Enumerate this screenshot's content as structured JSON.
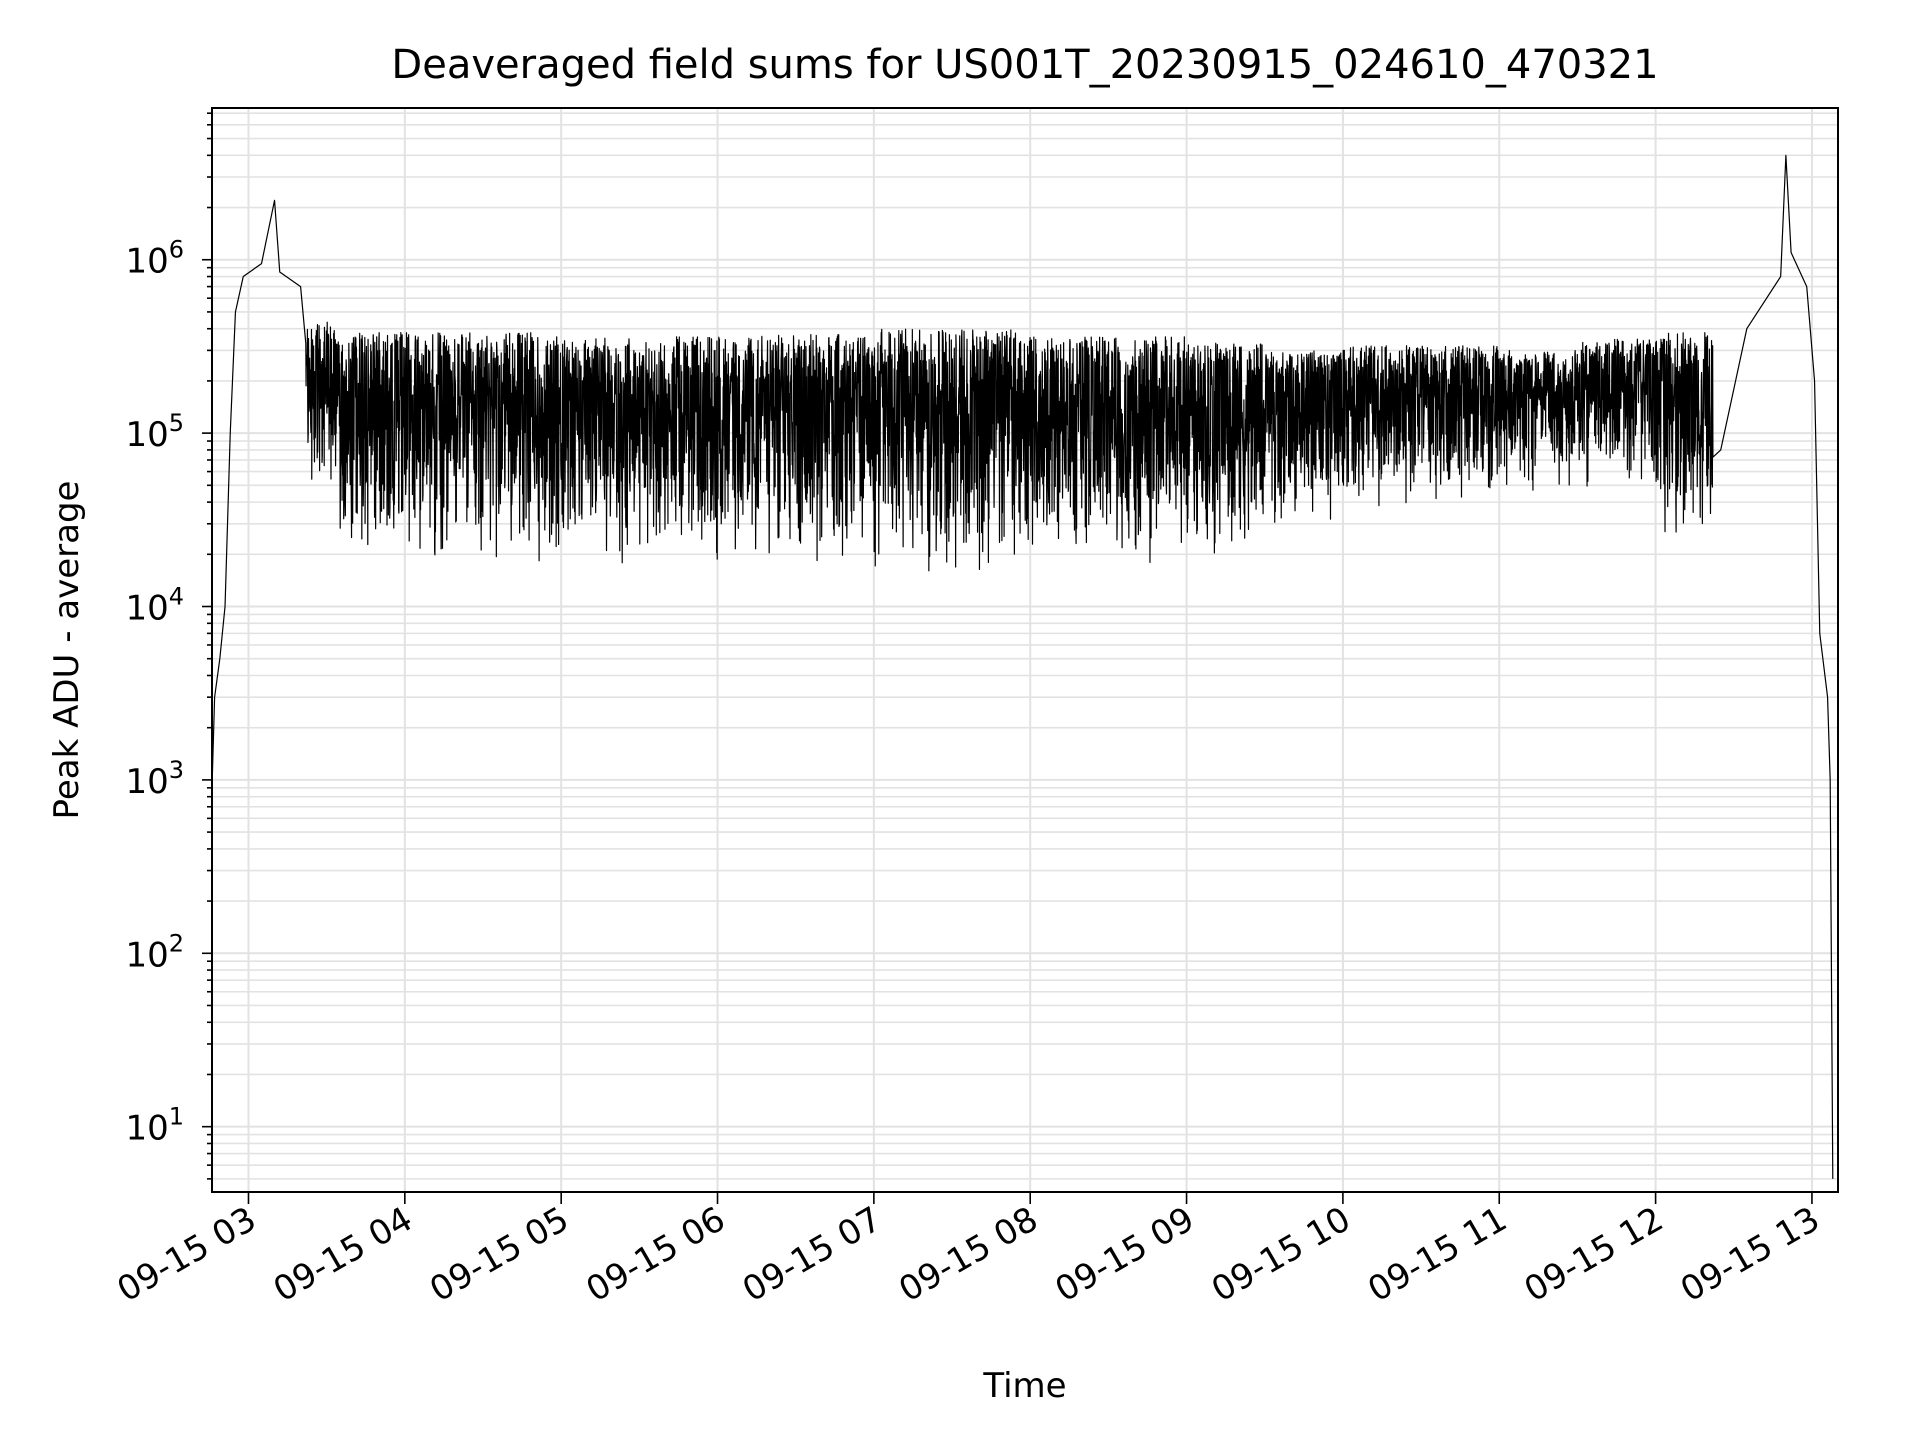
{
  "chart_data": {
    "type": "line",
    "title": "Deaveraged field sums for US001T_20230915_024610_470321",
    "xlabel": "Time",
    "ylabel": "Peak ADU - average",
    "yscale": "log",
    "grid": "major and minor",
    "xlim": [
      "2023-09-15 02:46",
      "2023-09-15 13:10"
    ],
    "ylim": [
      4.2,
      7500000
    ],
    "x_ticks": [
      {
        "value": "2023-09-15 03:00",
        "label": "09-15 03"
      },
      {
        "value": "2023-09-15 04:00",
        "label": "09-15 04"
      },
      {
        "value": "2023-09-15 05:00",
        "label": "09-15 05"
      },
      {
        "value": "2023-09-15 06:00",
        "label": "09-15 06"
      },
      {
        "value": "2023-09-15 07:00",
        "label": "09-15 07"
      },
      {
        "value": "2023-09-15 08:00",
        "label": "09-15 08"
      },
      {
        "value": "2023-09-15 09:00",
        "label": "09-15 09"
      },
      {
        "value": "2023-09-15 10:00",
        "label": "09-15 10"
      },
      {
        "value": "2023-09-15 11:00",
        "label": "09-15 11"
      },
      {
        "value": "2023-09-15 12:00",
        "label": "09-15 12"
      },
      {
        "value": "2023-09-15 13:00",
        "label": "09-15 13"
      }
    ],
    "y_ticks": [
      {
        "value": 10,
        "base": "10",
        "exp": "1"
      },
      {
        "value": 100,
        "base": "10",
        "exp": "2"
      },
      {
        "value": 1000,
        "base": "10",
        "exp": "3"
      },
      {
        "value": 10000,
        "base": "10",
        "exp": "4"
      },
      {
        "value": 100000,
        "base": "10",
        "exp": "5"
      },
      {
        "value": 1000000,
        "base": "10",
        "exp": "6"
      }
    ],
    "series": [
      {
        "color": "#000000",
        "description_points": [
          {
            "x": "2023-09-15 02:46",
            "y": 900
          },
          {
            "x": "2023-09-15 02:47",
            "y": 3000
          },
          {
            "x": "2023-09-15 02:49",
            "y": 5000
          },
          {
            "x": "2023-09-15 02:51",
            "y": 10000
          },
          {
            "x": "2023-09-15 02:53",
            "y": 100000
          },
          {
            "x": "2023-09-15 02:55",
            "y": 500000
          },
          {
            "x": "2023-09-15 02:58",
            "y": 800000
          },
          {
            "x": "2023-09-15 03:05",
            "y": 950000
          },
          {
            "x": "2023-09-15 03:10",
            "y": 2200000
          },
          {
            "x": "2023-09-15 03:12",
            "y": 850000
          },
          {
            "x": "2023-09-15 03:20",
            "y": 700000
          },
          {
            "x": "2023-09-15 03:25",
            "y": 300000
          },
          {
            "x": "2023-09-15 03:30",
            "y": 40000
          },
          {
            "x": "2023-09-15 04:00",
            "y": 30000
          },
          {
            "x": "2023-09-15 05:00",
            "y": 30000
          },
          {
            "x": "2023-09-15 06:00",
            "y": 50000
          },
          {
            "x": "2023-09-15 07:00",
            "y": 40000
          },
          {
            "x": "2023-09-15 08:00",
            "y": 60000
          },
          {
            "x": "2023-09-15 09:00",
            "y": 40000
          },
          {
            "x": "2023-09-15 10:00",
            "y": 35000
          },
          {
            "x": "2023-09-15 11:00",
            "y": 45000
          },
          {
            "x": "2023-09-15 11:30",
            "y": 50000
          },
          {
            "x": "2023-09-15 12:00",
            "y": 40000
          },
          {
            "x": "2023-09-15 12:15",
            "y": 25000
          },
          {
            "x": "2023-09-15 12:25",
            "y": 80000
          },
          {
            "x": "2023-09-15 12:35",
            "y": 400000
          },
          {
            "x": "2023-09-15 12:48",
            "y": 800000
          },
          {
            "x": "2023-09-15 12:50",
            "y": 4000000
          },
          {
            "x": "2023-09-15 12:52",
            "y": 1100000
          },
          {
            "x": "2023-09-15 12:58",
            "y": 700000
          },
          {
            "x": "2023-09-15 13:01",
            "y": 200000
          },
          {
            "x": "2023-09-15 13:03",
            "y": 7000
          },
          {
            "x": "2023-09-15 13:06",
            "y": 3000
          },
          {
            "x": "2023-09-15 13:07",
            "y": 1000
          },
          {
            "x": "2023-09-15 13:08",
            "y": 5
          }
        ],
        "bands": [
          {
            "from": "2023-09-15 03:22",
            "to": "2023-09-15 03:35",
            "low": 40000,
            "high": 450000
          },
          {
            "from": "2023-09-15 03:35",
            "to": "2023-09-15 05:00",
            "low": 17000,
            "high": 380000
          },
          {
            "from": "2023-09-15 05:00",
            "to": "2023-09-15 06:00",
            "low": 16000,
            "high": 360000
          },
          {
            "from": "2023-09-15 06:00",
            "to": "2023-09-15 07:00",
            "low": 17000,
            "high": 370000
          },
          {
            "from": "2023-09-15 07:00",
            "to": "2023-09-15 08:00",
            "low": 15000,
            "high": 400000
          },
          {
            "from": "2023-09-15 08:00",
            "to": "2023-09-15 09:00",
            "low": 17000,
            "high": 360000
          },
          {
            "from": "2023-09-15 09:00",
            "to": "2023-09-15 09:30",
            "low": 18000,
            "high": 330000
          },
          {
            "from": "2023-09-15 09:30",
            "to": "2023-09-15 10:00",
            "low": 28000,
            "high": 300000
          },
          {
            "from": "2023-09-15 10:00",
            "to": "2023-09-15 11:00",
            "low": 35000,
            "high": 320000
          },
          {
            "from": "2023-09-15 11:00",
            "to": "2023-09-15 11:30",
            "low": 45000,
            "high": 300000
          },
          {
            "from": "2023-09-15 11:30",
            "to": "2023-09-15 12:00",
            "low": 48000,
            "high": 350000
          },
          {
            "from": "2023-09-15 12:00",
            "to": "2023-09-15 12:22",
            "low": 25000,
            "high": 380000
          }
        ]
      }
    ]
  }
}
